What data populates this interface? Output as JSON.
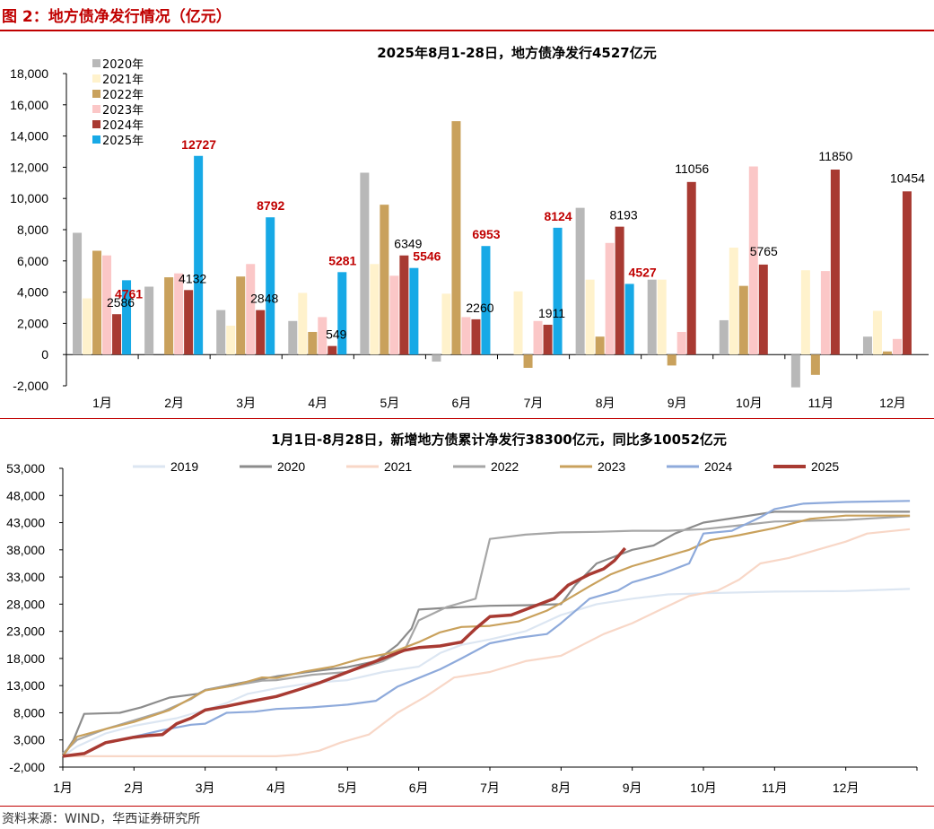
{
  "header": {
    "figure_title": "图 2：地方债净发行情况（亿元）",
    "source": "资料来源：WIND，华西证券研究所"
  },
  "colors": {
    "2020年": "#b8b8b8",
    "2021年": "#fff2cc",
    "2022年": "#c9a15c",
    "2023年": "#fbc7c7",
    "2024年": "#a83a32",
    "2025年": "#17a9e6",
    "2019": "#dce6f2",
    "2020": "#8c8c8c",
    "2021": "#f8d7c7",
    "2022": "#a6a6a6",
    "2023": "#c9a15c",
    "2024": "#8eaadb",
    "2025": "#a83a32"
  },
  "chart_data": [
    {
      "type": "bar",
      "title": "2025年8月1-28日，地方债净发行4527亿元",
      "categories": [
        "1月",
        "2月",
        "3月",
        "4月",
        "5月",
        "6月",
        "7月",
        "8月",
        "9月",
        "10月",
        "11月",
        "12月"
      ],
      "ylim": [
        -2000,
        18000
      ],
      "yticks": [
        "18,000",
        "16,000",
        "14,000",
        "12,000",
        "10,000",
        "8,000",
        "6,000",
        "4,000",
        "2,000",
        "0",
        "-2,000"
      ],
      "legend_position": "top-left",
      "series": [
        {
          "name": "2020年",
          "values": [
            7800,
            4350,
            2850,
            2150,
            11650,
            -450,
            null,
            9400,
            4800,
            2200,
            -2100,
            1150
          ]
        },
        {
          "name": "2021年",
          "values": [
            3600,
            null,
            1850,
            3950,
            5800,
            3900,
            4050,
            4800,
            4800,
            6850,
            5400,
            2800
          ]
        },
        {
          "name": "2022年",
          "values": [
            6650,
            4950,
            5000,
            1450,
            9600,
            14950,
            -850,
            1150,
            -700,
            4400,
            -1300,
            200
          ]
        },
        {
          "name": "2023年",
          "values": [
            6350,
            5200,
            5800,
            2400,
            5050,
            2400,
            2150,
            7150,
            1450,
            12050,
            5350,
            1000
          ]
        },
        {
          "name": "2024年",
          "values": [
            2586,
            4132,
            2848,
            549,
            6349,
            2260,
            1911,
            8193,
            11056,
            5765,
            11850,
            10454
          ]
        },
        {
          "name": "2025年",
          "values": [
            4761,
            12727,
            8792,
            5281,
            5546,
            6953,
            8124,
            4527,
            null,
            null,
            null,
            null
          ]
        }
      ],
      "labels_2024": [
        "2586",
        "4132",
        "2848",
        "549",
        "6349",
        "2260",
        "1911",
        "8193",
        "11056",
        "5765",
        "11850",
        "10454"
      ],
      "labels_2025": [
        "4761",
        "12727",
        "8792",
        "5281",
        "5546",
        "6953",
        "8124",
        "4527"
      ]
    },
    {
      "type": "line",
      "title": "1月1日-8月28日，新增地方债累计净发行38300亿元，同比多10052亿元",
      "xticks": [
        "1月",
        "2月",
        "3月",
        "4月",
        "5月",
        "6月",
        "7月",
        "8月",
        "9月",
        "10月",
        "11月",
        "12月"
      ],
      "ylim": [
        -2000,
        53000
      ],
      "yticks": [
        "53,000",
        "48,000",
        "43,000",
        "38,000",
        "33,000",
        "28,000",
        "23,000",
        "18,000",
        "13,000",
        "8,000",
        "3,000",
        "-2,000"
      ],
      "legend_position": "top",
      "series": [
        {
          "name": "2019",
          "points": [
            [
              1,
              0
            ],
            [
              1.2,
              1800
            ],
            [
              1.6,
              4200
            ],
            [
              2,
              5600
            ],
            [
              2.6,
              7000
            ],
            [
              3,
              8500
            ],
            [
              3.3,
              9800
            ],
            [
              3.6,
              11500
            ],
            [
              4,
              12500
            ],
            [
              4.5,
              13500
            ],
            [
              5,
              14000
            ],
            [
              5.5,
              15500
            ],
            [
              6,
              16500
            ],
            [
              6.3,
              19000
            ],
            [
              6.6,
              20500
            ],
            [
              7,
              21500
            ],
            [
              7.5,
              23000
            ],
            [
              8,
              26000
            ],
            [
              8.5,
              28000
            ],
            [
              9,
              29000
            ],
            [
              9.5,
              29800
            ],
            [
              10,
              30000
            ],
            [
              11,
              30300
            ],
            [
              12,
              30400
            ],
            [
              12.9,
              30800
            ]
          ]
        },
        {
          "name": "2020",
          "points": [
            [
              1,
              0
            ],
            [
              1.15,
              3000
            ],
            [
              1.3,
              7800
            ],
            [
              1.8,
              8000
            ],
            [
              2.1,
              9000
            ],
            [
              2.5,
              10800
            ],
            [
              2.9,
              11500
            ],
            [
              3,
              12200
            ],
            [
              3.5,
              13500
            ],
            [
              4,
              14700
            ],
            [
              4.5,
              15600
            ],
            [
              5,
              16400
            ],
            [
              5.4,
              17500
            ],
            [
              5.7,
              20500
            ],
            [
              5.9,
              23500
            ],
            [
              6,
              27000
            ],
            [
              6.5,
              27400
            ],
            [
              7,
              27700
            ],
            [
              7.5,
              27800
            ],
            [
              8,
              28000
            ],
            [
              8.2,
              31500
            ],
            [
              8.5,
              35500
            ],
            [
              8.8,
              37000
            ],
            [
              9,
              38000
            ],
            [
              9.3,
              38800
            ],
            [
              9.6,
              41000
            ],
            [
              10,
              43000
            ],
            [
              10.5,
              44000
            ],
            [
              11,
              45000
            ],
            [
              12,
              45000
            ],
            [
              12.9,
              45000
            ]
          ]
        },
        {
          "name": "2021",
          "points": [
            [
              1,
              0
            ],
            [
              2,
              0
            ],
            [
              3,
              0
            ],
            [
              4,
              0
            ],
            [
              4.3,
              300
            ],
            [
              4.6,
              1000
            ],
            [
              4.9,
              2500
            ],
            [
              5.3,
              4000
            ],
            [
              5.7,
              8000
            ],
            [
              6.1,
              11000
            ],
            [
              6.5,
              14500
            ],
            [
              7,
              15500
            ],
            [
              7.5,
              17500
            ],
            [
              8,
              18500
            ],
            [
              8.3,
              20500
            ],
            [
              8.6,
              22500
            ],
            [
              9,
              24500
            ],
            [
              9.4,
              27000
            ],
            [
              9.8,
              29500
            ],
            [
              10.2,
              30500
            ],
            [
              10.5,
              32500
            ],
            [
              10.8,
              35500
            ],
            [
              11.2,
              36500
            ],
            [
              11.6,
              38000
            ],
            [
              12,
              39500
            ],
            [
              12.3,
              41000
            ],
            [
              12.9,
              41800
            ]
          ]
        },
        {
          "name": "2022",
          "points": [
            [
              1,
              500
            ],
            [
              1.2,
              3000
            ],
            [
              1.6,
              5000
            ],
            [
              2,
              6600
            ],
            [
              2.4,
              8200
            ],
            [
              2.8,
              10500
            ],
            [
              3,
              12200
            ],
            [
              3.4,
              13000
            ],
            [
              3.8,
              13900
            ],
            [
              4,
              14000
            ],
            [
              4.5,
              15000
            ],
            [
              5,
              15500
            ],
            [
              5.5,
              17500
            ],
            [
              5.8,
              19500
            ],
            [
              6,
              25000
            ],
            [
              6.4,
              27500
            ],
            [
              6.8,
              29000
            ],
            [
              7,
              40000
            ],
            [
              7.5,
              40800
            ],
            [
              8,
              41200
            ],
            [
              8.5,
              41300
            ],
            [
              9,
              41500
            ],
            [
              9.5,
              41500
            ],
            [
              10,
              41800
            ],
            [
              10.5,
              42500
            ],
            [
              11,
              43200
            ],
            [
              12,
              43500
            ],
            [
              12.9,
              44200
            ]
          ]
        },
        {
          "name": "2023",
          "points": [
            [
              1,
              0
            ],
            [
              1.2,
              3600
            ],
            [
              1.6,
              5000
            ],
            [
              2,
              6300
            ],
            [
              2.5,
              8500
            ],
            [
              3,
              12100
            ],
            [
              3.4,
              13000
            ],
            [
              3.8,
              14500
            ],
            [
              4,
              14400
            ],
            [
              4.4,
              15600
            ],
            [
              4.8,
              16500
            ],
            [
              5.2,
              18000
            ],
            [
              5.6,
              19000
            ],
            [
              6,
              21000
            ],
            [
              6.3,
              22800
            ],
            [
              6.6,
              23800
            ],
            [
              7,
              24000
            ],
            [
              7.4,
              24800
            ],
            [
              7.8,
              26800
            ],
            [
              8,
              28200
            ],
            [
              8.4,
              31300
            ],
            [
              8.7,
              33500
            ],
            [
              9,
              35000
            ],
            [
              9.4,
              36500
            ],
            [
              9.8,
              38000
            ],
            [
              10.1,
              39800
            ],
            [
              10.5,
              40700
            ],
            [
              11,
              42000
            ],
            [
              11.5,
              43700
            ],
            [
              12,
              44300
            ],
            [
              12.9,
              44300
            ]
          ]
        },
        {
          "name": "2024",
          "points": [
            [
              1,
              0
            ],
            [
              1.3,
              500
            ],
            [
              1.6,
              2500
            ],
            [
              2,
              3600
            ],
            [
              2.4,
              4800
            ],
            [
              2.8,
              5800
            ],
            [
              3,
              6000
            ],
            [
              3.3,
              8000
            ],
            [
              3.7,
              8200
            ],
            [
              4,
              8700
            ],
            [
              4.5,
              9000
            ],
            [
              5,
              9500
            ],
            [
              5.4,
              10200
            ],
            [
              5.7,
              12800
            ],
            [
              6,
              14400
            ],
            [
              6.3,
              16000
            ],
            [
              6.6,
              18000
            ],
            [
              7,
              20800
            ],
            [
              7.4,
              21800
            ],
            [
              7.8,
              22500
            ],
            [
              8,
              24500
            ],
            [
              8.4,
              29000
            ],
            [
              8.8,
              30500
            ],
            [
              9,
              32000
            ],
            [
              9.4,
              33500
            ],
            [
              9.8,
              35500
            ],
            [
              10,
              41000
            ],
            [
              10.4,
              41500
            ],
            [
              10.8,
              44000
            ],
            [
              11,
              45500
            ],
            [
              11.4,
              46500
            ],
            [
              12,
              46800
            ],
            [
              12.9,
              47000
            ]
          ]
        },
        {
          "name": "2025",
          "points": [
            [
              1,
              0
            ],
            [
              1.3,
              500
            ],
            [
              1.6,
              2500
            ],
            [
              2,
              3500
            ],
            [
              2.2,
              3800
            ],
            [
              2.4,
              4000
            ],
            [
              2.6,
              6000
            ],
            [
              2.8,
              7000
            ],
            [
              3,
              8500
            ],
            [
              3.3,
              9200
            ],
            [
              3.6,
              10000
            ],
            [
              4,
              11000
            ],
            [
              4.3,
              12200
            ],
            [
              4.6,
              13500
            ],
            [
              4.9,
              15000
            ],
            [
              5.2,
              16500
            ],
            [
              5.5,
              18000
            ],
            [
              5.8,
              19500
            ],
            [
              6,
              20000
            ],
            [
              6.3,
              20300
            ],
            [
              6.6,
              21000
            ],
            [
              6.8,
              23500
            ],
            [
              7,
              25700
            ],
            [
              7.3,
              26000
            ],
            [
              7.6,
              27500
            ],
            [
              7.9,
              29000
            ],
            [
              8.1,
              31500
            ],
            [
              8.4,
              33500
            ],
            [
              8.6,
              34500
            ],
            [
              8.75,
              36000
            ],
            [
              8.9,
              38300
            ]
          ]
        }
      ]
    }
  ]
}
